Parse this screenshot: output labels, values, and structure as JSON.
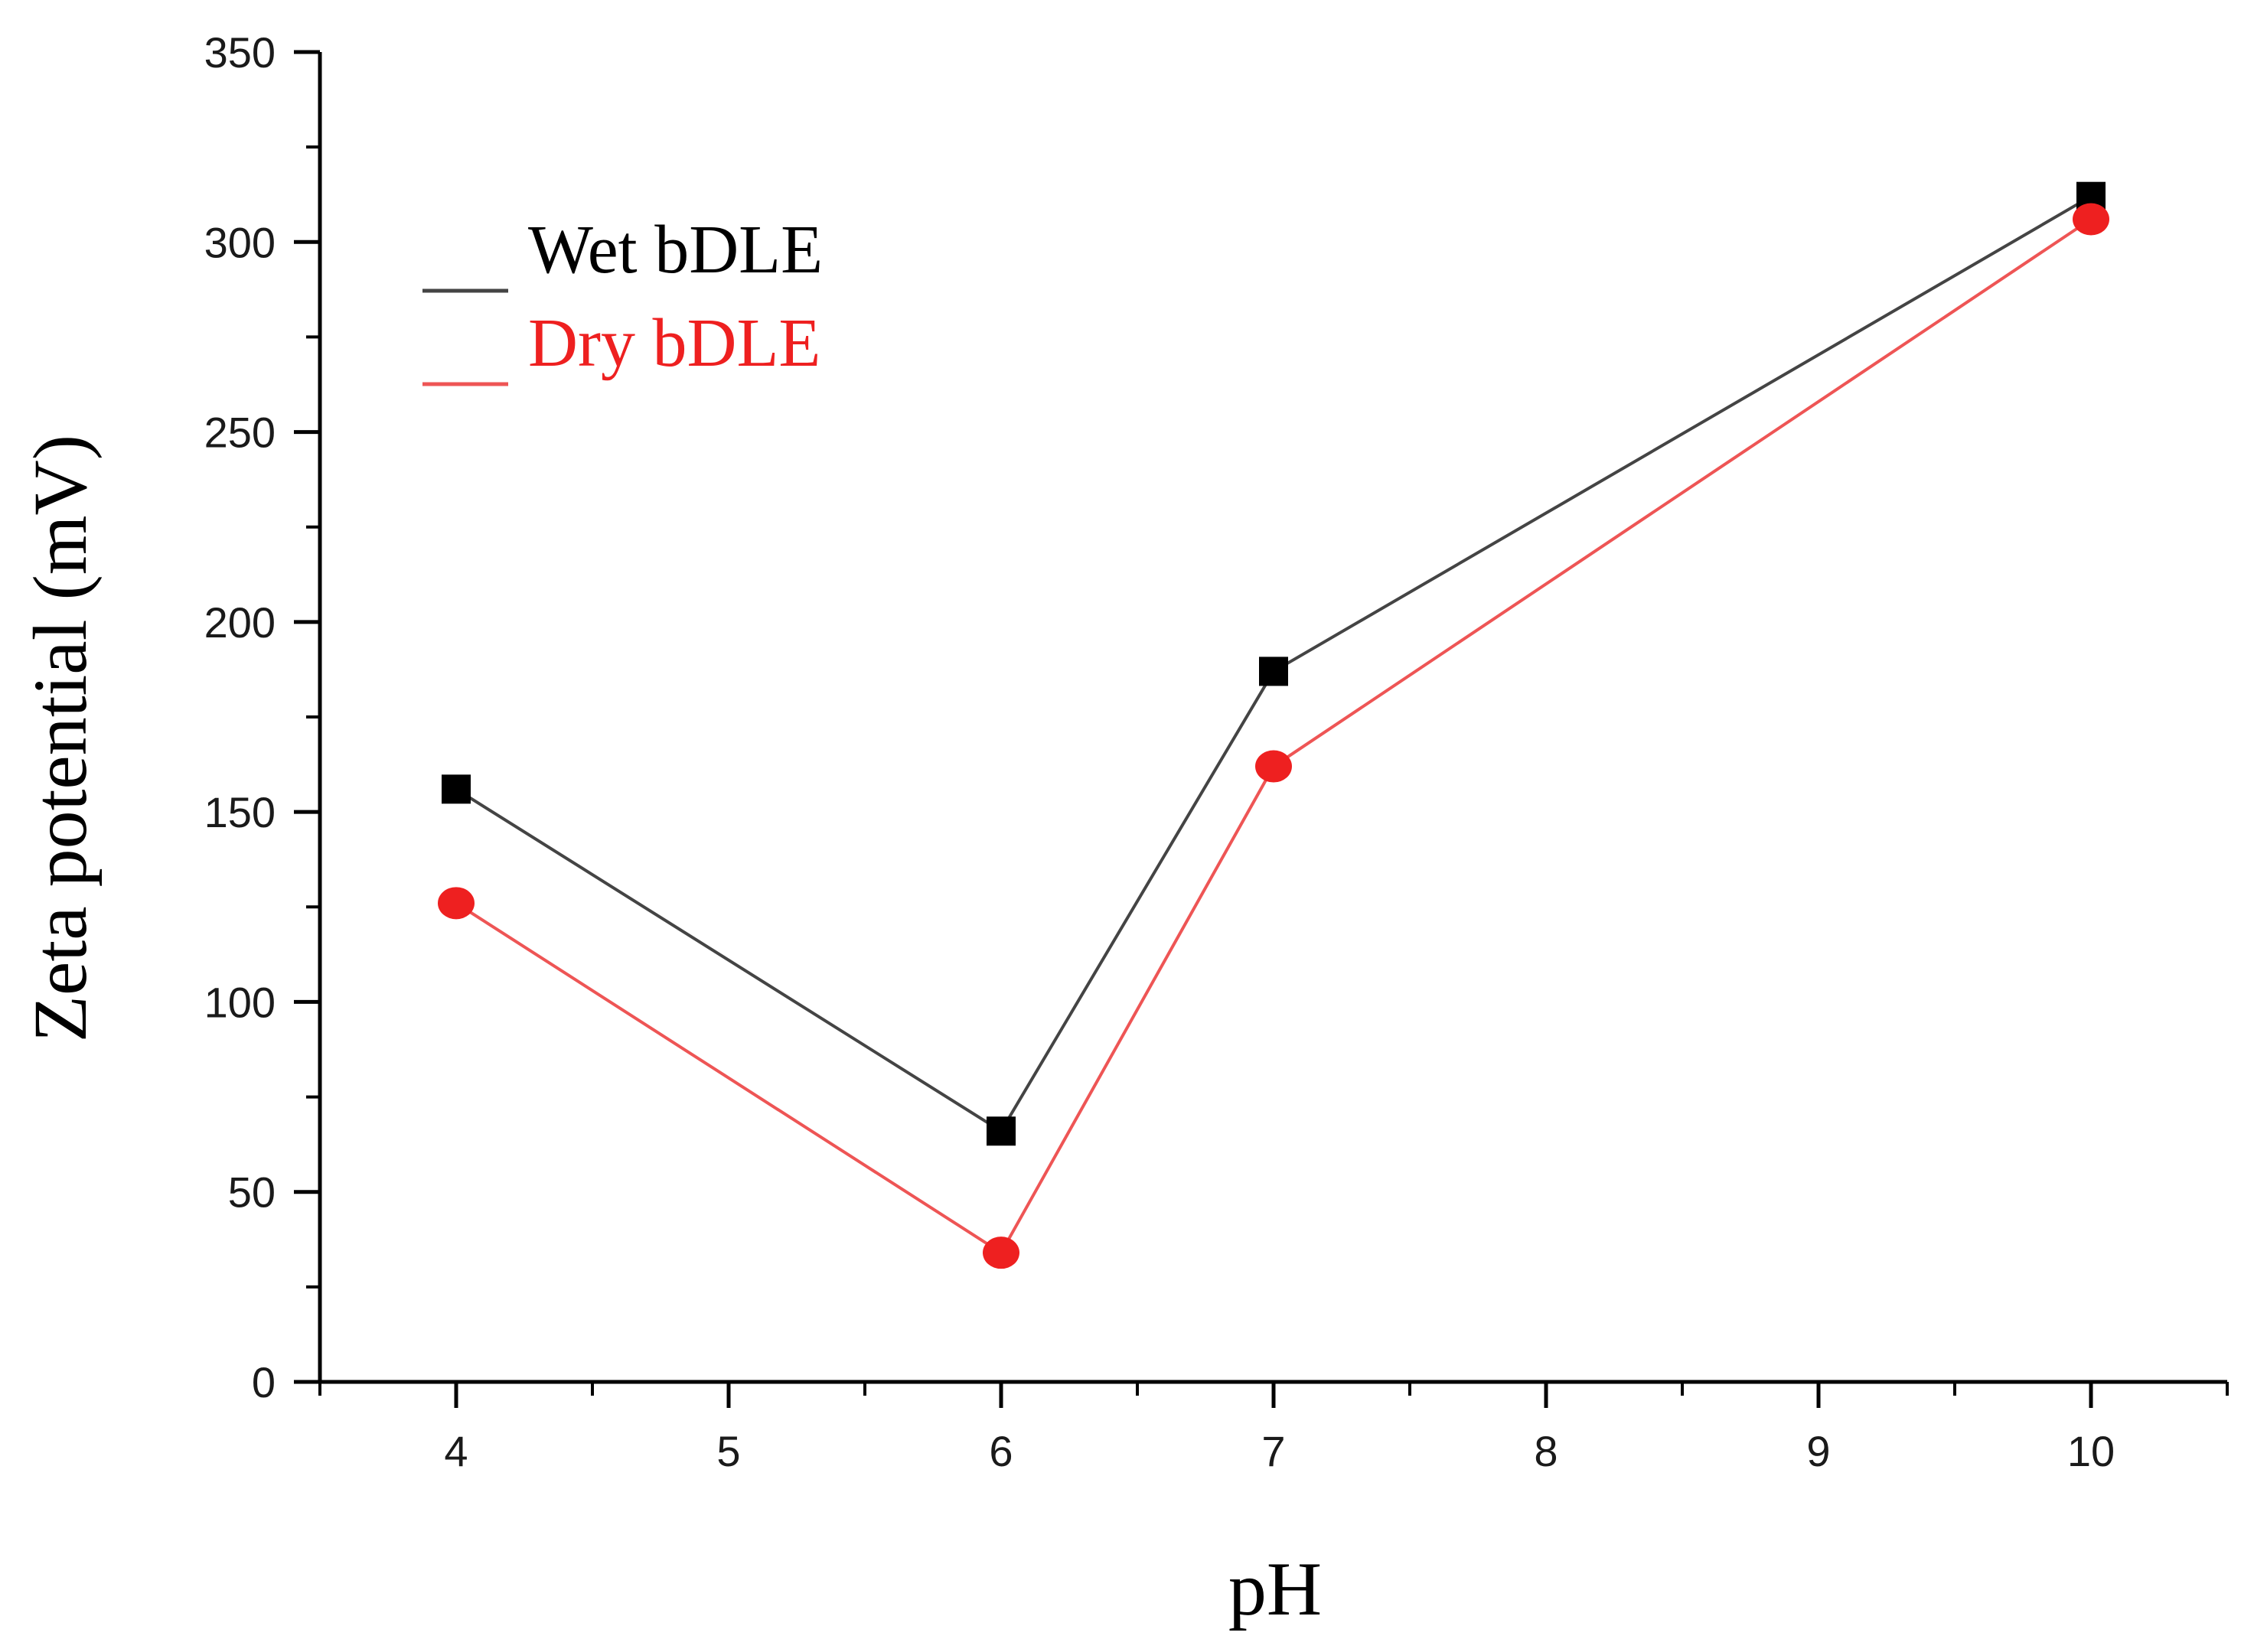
{
  "chart_data": {
    "type": "line",
    "title": "",
    "xlabel": "pH",
    "ylabel": "Zeta potential (mV)",
    "xlim": [
      3.5,
      10.5
    ],
    "ylim": [
      0,
      350
    ],
    "xticks": [
      4,
      5,
      6,
      7,
      8,
      9,
      10
    ],
    "yticks": [
      0,
      50,
      100,
      150,
      200,
      250,
      300,
      350
    ],
    "legend_position": "top-left",
    "grid": false,
    "series": [
      {
        "name": "Wet bDLE",
        "color": "#000000",
        "line_color": "#444444",
        "marker": "square",
        "x": [
          4,
          6,
          7,
          10
        ],
        "values": [
          156,
          66,
          187,
          312
        ]
      },
      {
        "name": "Dry bDLE",
        "color": "#ee2020",
        "line_color": "#ee5555",
        "marker": "circle",
        "x": [
          4,
          6,
          7,
          10
        ],
        "values": [
          126,
          34,
          162,
          306
        ]
      }
    ]
  }
}
